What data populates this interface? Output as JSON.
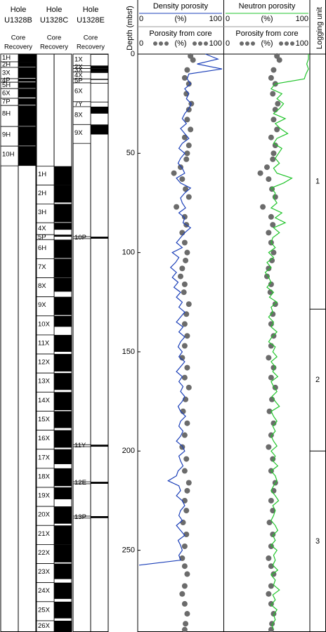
{
  "chart_data": {
    "type": "well-log",
    "depth_label": "Depth (mbsf)",
    "ylim": [
      0,
      291
    ],
    "yticks": [
      0,
      50,
      100,
      150,
      200,
      250
    ],
    "holes": [
      {
        "hole_label": "Hole",
        "name": "U1328B",
        "recovery_label": [
          "Core",
          "Recovery"
        ],
        "cores": [
          {
            "label": "1H",
            "top": 0,
            "bottom": 3.9,
            "recovery": 3.9
          },
          {
            "label": "2H",
            "top": 3.9,
            "bottom": 6.7,
            "recovery": 2.6
          },
          {
            "label": "3X",
            "top": 6.7,
            "bottom": 12.4,
            "recovery": 5.4
          },
          {
            "label": "4P",
            "top": 12.4,
            "bottom": 14.2,
            "recovery": 1.5
          },
          {
            "label": "5H",
            "top": 14.2,
            "bottom": 17.4,
            "recovery": 3.0
          },
          {
            "label": "6X",
            "top": 17.4,
            "bottom": 22.3,
            "recovery": 4.5
          },
          {
            "label": "7P",
            "top": 22.3,
            "bottom": 25.9,
            "recovery": 3.3
          },
          {
            "label": "8H",
            "top": 25.9,
            "bottom": 36.5,
            "recovery": 10.4
          },
          {
            "label": "9H",
            "top": 36.5,
            "bottom": 46.4,
            "recovery": 9.7
          },
          {
            "label": "10H",
            "top": 46.4,
            "bottom": 56.3,
            "recovery": 9.9
          }
        ]
      },
      {
        "hole_label": "Hole",
        "name": "U1328C",
        "recovery_label": [
          "Core",
          "Recovery"
        ],
        "cores": [
          {
            "label": "1H",
            "top": 56.5,
            "bottom": 66.0,
            "recovery": 9.5
          },
          {
            "label": "2H",
            "top": 66.0,
            "bottom": 75.5,
            "recovery": 8.8
          },
          {
            "label": "3H",
            "top": 75.5,
            "bottom": 85.0,
            "recovery": 9.2
          },
          {
            "label": "4X",
            "top": 85.0,
            "bottom": 91.0,
            "recovery": 3.5
          },
          {
            "label": "5P",
            "top": 91.0,
            "bottom": 93.5,
            "recovery": 1.0
          },
          {
            "label": "6H",
            "top": 93.5,
            "bottom": 103.1,
            "recovery": 9.3
          },
          {
            "label": "7X",
            "top": 103.1,
            "bottom": 112.7,
            "recovery": 9.5
          },
          {
            "label": "8X",
            "top": 112.7,
            "bottom": 122.3,
            "recovery": 7.0
          },
          {
            "label": "9X",
            "top": 122.3,
            "bottom": 131.9,
            "recovery": 9.2
          },
          {
            "label": "10X",
            "top": 131.9,
            "bottom": 141.5,
            "recovery": 5.5
          },
          {
            "label": "11X",
            "top": 141.5,
            "bottom": 151.1,
            "recovery": 8.5
          },
          {
            "label": "12X",
            "top": 151.1,
            "bottom": 160.7,
            "recovery": 8.8
          },
          {
            "label": "13X",
            "top": 160.7,
            "bottom": 170.3,
            "recovery": 8.5
          },
          {
            "label": "14X",
            "top": 170.3,
            "bottom": 179.9,
            "recovery": 9.1
          },
          {
            "label": "15X",
            "top": 179.9,
            "bottom": 189.5,
            "recovery": 8.5
          },
          {
            "label": "16X",
            "top": 189.5,
            "bottom": 199.1,
            "recovery": 8.8
          },
          {
            "label": "17X",
            "top": 199.1,
            "bottom": 208.7,
            "recovery": 7.5
          },
          {
            "label": "18X",
            "top": 208.7,
            "bottom": 218.3,
            "recovery": 9.0
          },
          {
            "label": "19X",
            "top": 218.3,
            "bottom": 227.9,
            "recovery": 6.0
          },
          {
            "label": "20X",
            "top": 227.9,
            "bottom": 237.5,
            "recovery": 8.7
          },
          {
            "label": "21X",
            "top": 237.5,
            "bottom": 247.1,
            "recovery": 9.6
          },
          {
            "label": "22X",
            "top": 247.1,
            "bottom": 256.7,
            "recovery": 9.0
          },
          {
            "label": "23X",
            "top": 256.7,
            "bottom": 266.3,
            "recovery": 7.8
          },
          {
            "label": "24X",
            "top": 266.3,
            "bottom": 275.9,
            "recovery": 8.2
          },
          {
            "label": "25X",
            "top": 275.9,
            "bottom": 285.5,
            "recovery": 8.4
          },
          {
            "label": "26X",
            "top": 285.5,
            "bottom": 291,
            "recovery": 5.5
          }
        ]
      },
      {
        "hole_label": "Hole",
        "name": "U1328E",
        "recovery_label": [
          "Core",
          "Recovery"
        ],
        "cores": [
          {
            "label": "1X",
            "top": 0,
            "bottom": 5.8,
            "recovery": 0.3
          },
          {
            "label": "2X",
            "top": 5.8,
            "bottom": 7.3,
            "recovery": 1.5
          },
          {
            "label": "3X",
            "top": 7.3,
            "bottom": 9.0,
            "recovery": 1.7
          },
          {
            "label": "4X",
            "top": 9.0,
            "bottom": 12.5,
            "recovery": 0.5
          },
          {
            "label": "5P",
            "top": 12.5,
            "bottom": 14.5,
            "recovery": 0.5
          },
          {
            "label": "6X",
            "top": 14.5,
            "bottom": 24.0,
            "recovery": 0.3
          },
          {
            "label": "7Y",
            "top": 24.0,
            "bottom": 26.5,
            "recovery": 0.3
          },
          {
            "label": "8X",
            "top": 26.5,
            "bottom": 35.5,
            "recovery": 3.5
          },
          {
            "label": "9X",
            "top": 35.5,
            "bottom": 45.0,
            "recovery": 5.0
          },
          {
            "label": "10P",
            "top": 92.0,
            "bottom": 93.0,
            "recovery": 1.0
          },
          {
            "label": "11Y",
            "top": 196.8,
            "bottom": 197.8,
            "recovery": 1.0
          },
          {
            "label": "12E",
            "top": 215.5,
            "bottom": 216.5,
            "recovery": 1.0
          },
          {
            "label": "13P",
            "top": 232.8,
            "bottom": 233.8,
            "recovery": 1.0
          }
        ]
      }
    ],
    "tracks": [
      {
        "title": "Density porosity",
        "color": "#1b3fb8",
        "xlim": [
          0,
          100
        ],
        "xticks": [
          0,
          100
        ],
        "unit": "(%)",
        "depths": [
          0,
          2.5,
          5,
          7.5,
          10,
          12.5,
          15,
          17.5,
          20,
          22.5,
          25,
          27.5,
          30,
          32.5,
          35,
          37.5,
          40,
          42.5,
          45,
          47.5,
          50,
          52.5,
          55,
          57.5,
          60,
          62.5,
          65,
          67.5,
          70,
          72.5,
          75,
          77.5,
          80,
          82.5,
          85,
          87.5,
          90,
          92.5,
          95,
          97.5,
          100,
          102.5,
          105,
          107.5,
          110,
          112.5,
          115,
          117.5,
          120,
          122.5,
          125,
          127.5,
          130,
          132.5,
          135,
          137.5,
          140,
          142.5,
          145,
          147.5,
          150,
          152.5,
          155,
          157.5,
          160,
          162.5,
          165,
          167.5,
          170,
          172.5,
          175,
          177.5,
          180,
          182.5,
          185,
          187.5,
          190,
          192.5,
          195,
          197.5,
          200,
          202.5,
          205,
          207.5,
          210,
          212.5,
          215,
          217.5,
          220,
          222.5,
          225,
          227.5,
          230,
          232.5,
          235,
          237.5,
          240,
          242.5,
          245,
          247.5,
          250,
          252.5,
          255,
          257.5
        ],
        "values": [
          80,
          95,
          70,
          100,
          60,
          58,
          62,
          55,
          60,
          57,
          63,
          60,
          55,
          52,
          57,
          50,
          55,
          60,
          52,
          48,
          55,
          50,
          47,
          52,
          55,
          45,
          50,
          62,
          55,
          50,
          52,
          56,
          48,
          55,
          53,
          62,
          55,
          50,
          45,
          52,
          40,
          48,
          44,
          38,
          45,
          40,
          47,
          42,
          50,
          45,
          52,
          48,
          55,
          50,
          45,
          53,
          48,
          55,
          50,
          47,
          52,
          48,
          55,
          50,
          45,
          52,
          48,
          53,
          50,
          55,
          52,
          47,
          50,
          56,
          50,
          48,
          53,
          50,
          45,
          52,
          55,
          48,
          50,
          53,
          47,
          45,
          35,
          48,
          50,
          45,
          52,
          55,
          50,
          48,
          52,
          45,
          50,
          55,
          47,
          50,
          52,
          48,
          50,
          0
        ]
      },
      {
        "title": "Neutron porosity",
        "color": "#22c42c",
        "xlim": [
          0,
          100
        ],
        "xticks": [
          0,
          100
        ],
        "unit": "(%)",
        "depths": [
          0,
          2.5,
          5,
          7.5,
          10,
          12.5,
          15,
          17.5,
          20,
          22.5,
          25,
          27.5,
          30,
          32.5,
          35,
          37.5,
          40,
          42.5,
          45,
          47.5,
          50,
          52.5,
          55,
          57.5,
          60,
          62.5,
          65,
          67.5,
          70,
          72.5,
          75,
          77.5,
          80,
          82.5,
          85,
          87.5,
          90,
          92.5,
          95,
          97.5,
          100,
          102.5,
          105,
          107.5,
          110,
          112.5,
          115,
          117.5,
          120,
          122.5,
          125,
          127.5,
          130,
          132.5,
          135,
          137.5,
          140,
          142.5,
          145,
          147.5,
          150,
          152.5,
          155,
          157.5,
          160,
          162.5,
          165,
          167.5,
          170,
          172.5,
          175,
          177.5,
          180,
          182.5,
          185,
          187.5,
          190,
          192.5,
          195,
          197.5,
          200,
          202.5,
          205,
          207.5,
          210,
          212.5,
          215,
          217.5,
          220,
          222.5,
          225,
          227.5,
          230,
          232.5,
          235,
          237.5,
          240,
          242.5,
          245,
          247.5,
          250,
          252.5,
          255,
          257.5,
          260,
          262.5,
          265,
          267.5,
          270,
          272.5,
          275,
          277.5,
          280,
          282.5,
          285,
          287.5,
          290
        ],
        "values": [
          100,
          100,
          98,
          100,
          97,
          95,
          60,
          55,
          68,
          62,
          70,
          65,
          58,
          72,
          60,
          66,
          75,
          62,
          58,
          68,
          64,
          60,
          65,
          58,
          62,
          80,
          70,
          55,
          60,
          58,
          62,
          55,
          68,
          60,
          72,
          58,
          65,
          57,
          55,
          60,
          52,
          58,
          50,
          55,
          48,
          52,
          55,
          50,
          58,
          53,
          62,
          55,
          57,
          52,
          58,
          55,
          62,
          56,
          52,
          60,
          57,
          62,
          55,
          60,
          57,
          63,
          55,
          58,
          62,
          56,
          60,
          65,
          55,
          58,
          62,
          57,
          60,
          55,
          58,
          62,
          55,
          60,
          57,
          63,
          55,
          60,
          62,
          58,
          55,
          60,
          64,
          57,
          60,
          58,
          55,
          60,
          63,
          57,
          60,
          55,
          62,
          58,
          60,
          57,
          63,
          55,
          60,
          58,
          65,
          57,
          60,
          55,
          62,
          58,
          60,
          56,
          58
        ]
      }
    ],
    "core_porosity": {
      "name": "Porosity from core",
      "color": "#6b6b6b",
      "xlim": [
        0,
        100
      ],
      "xticks": [
        0,
        100
      ],
      "unit": "(%)",
      "depths": [
        1,
        3,
        8,
        12,
        15,
        20,
        25,
        28,
        33,
        38,
        42,
        46,
        50,
        53,
        57,
        60,
        63,
        68,
        72,
        77,
        82,
        86,
        90,
        95,
        100,
        104,
        108,
        112,
        116,
        120,
        126,
        131,
        136,
        142,
        147,
        153,
        158,
        163,
        168,
        174,
        180,
        186,
        192,
        198,
        204,
        210,
        216,
        220,
        225,
        230,
        236,
        242,
        248,
        254,
        258,
        262,
        268,
        272,
        277,
        282,
        287,
        290
      ],
      "values": [
        62,
        65,
        58,
        55,
        60,
        57,
        63,
        60,
        58,
        62,
        55,
        60,
        58,
        57,
        50,
        42,
        52,
        56,
        60,
        45,
        55,
        57,
        52,
        55,
        58,
        56,
        52,
        50,
        55,
        54,
        60,
        57,
        55,
        58,
        55,
        52,
        58,
        55,
        60,
        56,
        53,
        58,
        55,
        52,
        57,
        55,
        60,
        58,
        55,
        57,
        53,
        57,
        55,
        52,
        55,
        58,
        55,
        52,
        55,
        58,
        56,
        55
      ]
    },
    "logging_units": {
      "title": "Logging unit",
      "units": [
        {
          "label": "1",
          "top": 0,
          "bottom": 128.5
        },
        {
          "label": "2",
          "top": 128.5,
          "bottom": 200
        },
        {
          "label": "3",
          "top": 200,
          "bottom": 291
        }
      ]
    }
  }
}
